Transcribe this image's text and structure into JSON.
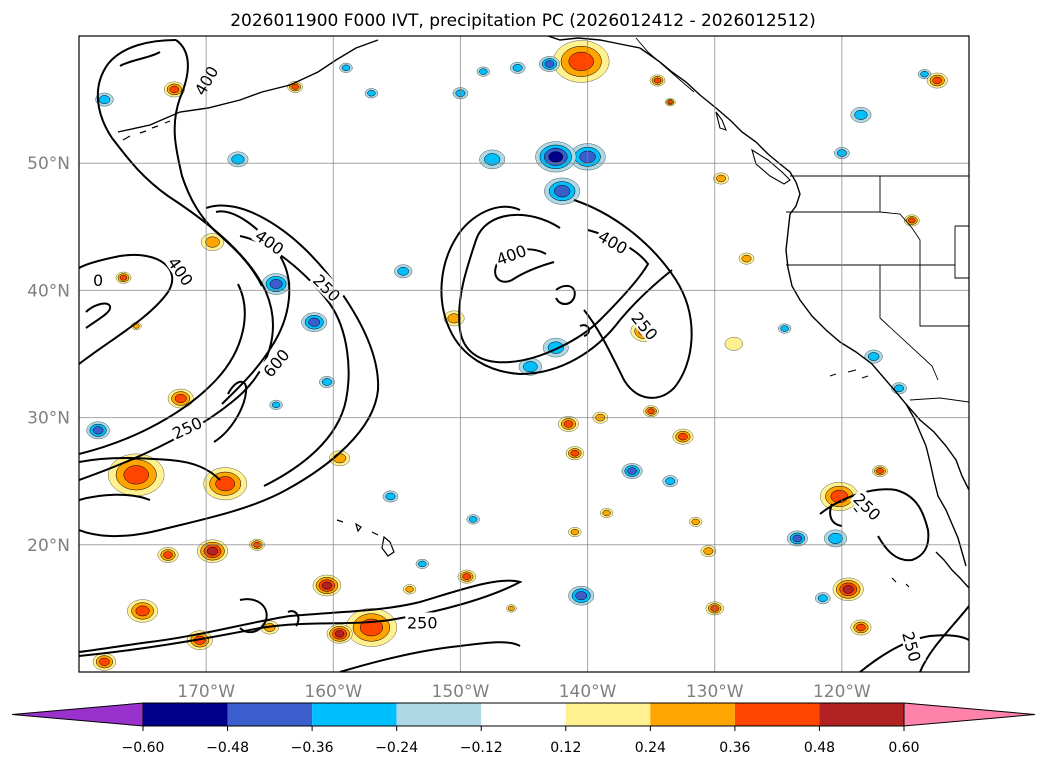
{
  "title": "2026011900 F000 IVT, precipitation PC (2026012412 - 2026012512)",
  "map": {
    "lon_range": [
      -180,
      -110
    ],
    "lat_range": [
      10,
      60
    ],
    "lon_labels": [
      {
        "value": -170,
        "text": "170°W"
      },
      {
        "value": -160,
        "text": "160°W"
      },
      {
        "value": -150,
        "text": "150°W"
      },
      {
        "value": -140,
        "text": "140°W"
      },
      {
        "value": -130,
        "text": "130°W"
      },
      {
        "value": -120,
        "text": "120°W"
      }
    ],
    "lat_labels": [
      {
        "value": 20,
        "text": "20°N"
      },
      {
        "value": 30,
        "text": "30°N"
      },
      {
        "value": 40,
        "text": "40°N"
      },
      {
        "value": 50,
        "text": "50°N"
      }
    ],
    "contour_labels": [
      {
        "lon": -172,
        "lat": 41.5,
        "text": "400",
        "rot": 55
      },
      {
        "lon": -178.5,
        "lat": 40.8,
        "text": "0",
        "rot": 0
      },
      {
        "lon": -171.5,
        "lat": 29.2,
        "text": "250",
        "rot": -25
      },
      {
        "lon": -164.5,
        "lat": 34.3,
        "text": "600",
        "rot": -50
      },
      {
        "lon": -165,
        "lat": 43.8,
        "text": "400",
        "rot": 35
      },
      {
        "lon": -160.5,
        "lat": 40.2,
        "text": "250",
        "rot": 45
      },
      {
        "lon": -153,
        "lat": 13.9,
        "text": "250",
        "rot": 0
      },
      {
        "lon": -170,
        "lat": 56.5,
        "text": "400",
        "rot": -60
      },
      {
        "lon": -146,
        "lat": 42.8,
        "text": "400",
        "rot": -20
      },
      {
        "lon": -138,
        "lat": 43.8,
        "text": "400",
        "rot": 30
      },
      {
        "lon": -135.5,
        "lat": 37.2,
        "text": "250",
        "rot": 50
      },
      {
        "lon": -118,
        "lat": 23,
        "text": "250",
        "rot": 45
      },
      {
        "lon": -114.5,
        "lat": 12,
        "text": "250",
        "rot": 75
      }
    ]
  },
  "colorbar": {
    "colors": [
      "#9932cc",
      "#00008b",
      "#3a5fcd",
      "#00bfff",
      "#add8e6",
      "#ffffff",
      "#fff090",
      "#ffa500",
      "#ff4500",
      "#b22222",
      "#ff82ab"
    ],
    "ticks": [
      {
        "value": -0.6,
        "text": "−0.60"
      },
      {
        "value": -0.48,
        "text": "−0.48"
      },
      {
        "value": -0.36,
        "text": "−0.36"
      },
      {
        "value": -0.24,
        "text": "−0.24"
      },
      {
        "value": -0.12,
        "text": "−0.12"
      },
      {
        "value": 0.12,
        "text": "0.12"
      },
      {
        "value": 0.24,
        "text": "0.24"
      },
      {
        "value": 0.36,
        "text": "0.36"
      },
      {
        "value": 0.48,
        "text": "0.48"
      },
      {
        "value": 0.6,
        "text": "0.60"
      }
    ]
  },
  "blobs": [
    {
      "lon": -140.5,
      "lat": 58,
      "r": 2.2,
      "level": 3
    },
    {
      "lon": -140,
      "lat": 50.5,
      "r": 1.4,
      "level": -3
    },
    {
      "lon": -142.5,
      "lat": 50.5,
      "r": 1.6,
      "level": -4
    },
    {
      "lon": -142,
      "lat": 47.8,
      "r": 1.4,
      "level": -3
    },
    {
      "lon": -147.5,
      "lat": 50.3,
      "r": 1.0,
      "level": -2
    },
    {
      "lon": -143,
      "lat": 57.8,
      "r": 0.8,
      "level": -3
    },
    {
      "lon": -172.5,
      "lat": 55.8,
      "r": 0.8,
      "level": 3
    },
    {
      "lon": -178,
      "lat": 55,
      "r": 0.7,
      "level": -2
    },
    {
      "lon": -167.5,
      "lat": 50.3,
      "r": 0.8,
      "level": -2
    },
    {
      "lon": -164.5,
      "lat": 40.5,
      "r": 1.1,
      "level": -3
    },
    {
      "lon": -161.5,
      "lat": 37.5,
      "r": 1.0,
      "level": -3
    },
    {
      "lon": -169.5,
      "lat": 43.8,
      "r": 0.9,
      "level": 2
    },
    {
      "lon": -154.5,
      "lat": 41.5,
      "r": 0.7,
      "level": -2
    },
    {
      "lon": -150.5,
      "lat": 37.8,
      "r": 0.8,
      "level": 2
    },
    {
      "lon": -142.5,
      "lat": 35.5,
      "r": 1.0,
      "level": -2
    },
    {
      "lon": -144.5,
      "lat": 34,
      "r": 0.9,
      "level": -2
    },
    {
      "lon": -135.5,
      "lat": 36.8,
      "r": 1.1,
      "level": 3
    },
    {
      "lon": -128.5,
      "lat": 35.8,
      "r": 0.7,
      "level": 1
    },
    {
      "lon": -112.5,
      "lat": 56.5,
      "r": 0.8,
      "level": 3
    },
    {
      "lon": -118.5,
      "lat": 53.8,
      "r": 0.8,
      "level": -2
    },
    {
      "lon": -120,
      "lat": 50.8,
      "r": 0.6,
      "level": -2
    },
    {
      "lon": -129.5,
      "lat": 48.8,
      "r": 0.6,
      "level": 2
    },
    {
      "lon": -127.5,
      "lat": 42.5,
      "r": 0.6,
      "level": 2
    },
    {
      "lon": -117.5,
      "lat": 34.8,
      "r": 0.7,
      "level": -2
    },
    {
      "lon": -178.5,
      "lat": 29,
      "r": 0.9,
      "level": -3
    },
    {
      "lon": -175.5,
      "lat": 25.5,
      "r": 2.2,
      "level": 3
    },
    {
      "lon": -168.5,
      "lat": 24.8,
      "r": 1.7,
      "level": 3
    },
    {
      "lon": -172,
      "lat": 31.5,
      "r": 1.0,
      "level": 3
    },
    {
      "lon": -159.5,
      "lat": 26.8,
      "r": 0.8,
      "level": 2
    },
    {
      "lon": -169.5,
      "lat": 19.5,
      "r": 1.2,
      "level": 4
    },
    {
      "lon": -173,
      "lat": 19.2,
      "r": 0.8,
      "level": 3
    },
    {
      "lon": -160.5,
      "lat": 16.8,
      "r": 1.1,
      "level": 4
    },
    {
      "lon": -157,
      "lat": 13.5,
      "r": 2.0,
      "level": 3
    },
    {
      "lon": -159.5,
      "lat": 13,
      "r": 1.0,
      "level": 4
    },
    {
      "lon": -175,
      "lat": 14.8,
      "r": 1.2,
      "level": 3
    },
    {
      "lon": -170.5,
      "lat": 12.5,
      "r": 1.0,
      "level": 3
    },
    {
      "lon": -165,
      "lat": 13.5,
      "r": 0.7,
      "level": 2
    },
    {
      "lon": -178,
      "lat": 10.8,
      "r": 0.9,
      "level": 3
    },
    {
      "lon": -141.5,
      "lat": 29.5,
      "r": 0.8,
      "level": 3
    },
    {
      "lon": -141,
      "lat": 27.2,
      "r": 0.7,
      "level": 3
    },
    {
      "lon": -139,
      "lat": 30,
      "r": 0.6,
      "level": 2
    },
    {
      "lon": -135,
      "lat": 30.5,
      "r": 0.6,
      "level": 3
    },
    {
      "lon": -136.5,
      "lat": 25.8,
      "r": 0.8,
      "level": -3
    },
    {
      "lon": -132.5,
      "lat": 28.5,
      "r": 0.8,
      "level": 3
    },
    {
      "lon": -133.5,
      "lat": 25,
      "r": 0.6,
      "level": -2
    },
    {
      "lon": -131.5,
      "lat": 21.8,
      "r": 0.5,
      "level": 2
    },
    {
      "lon": -140.5,
      "lat": 16,
      "r": 1.0,
      "level": -3
    },
    {
      "lon": -138.5,
      "lat": 22.5,
      "r": 0.5,
      "level": 2
    },
    {
      "lon": -149.5,
      "lat": 17.5,
      "r": 0.7,
      "level": 3
    },
    {
      "lon": -141,
      "lat": 21,
      "r": 0.5,
      "level": 2
    },
    {
      "lon": -130,
      "lat": 15,
      "r": 0.7,
      "level": 3
    },
    {
      "lon": -123.5,
      "lat": 20.5,
      "r": 0.8,
      "level": -3
    },
    {
      "lon": -120.5,
      "lat": 20.5,
      "r": 0.9,
      "level": -2
    },
    {
      "lon": -120.2,
      "lat": 23.8,
      "r": 1.5,
      "level": 3
    },
    {
      "lon": -119.5,
      "lat": 16.5,
      "r": 1.2,
      "level": 4
    },
    {
      "lon": -121.5,
      "lat": 15.8,
      "r": 0.6,
      "level": -2
    },
    {
      "lon": -118.5,
      "lat": 13.5,
      "r": 0.8,
      "level": 3
    },
    {
      "lon": -117,
      "lat": 25.8,
      "r": 0.6,
      "level": 3
    },
    {
      "lon": -155.5,
      "lat": 23.8,
      "r": 0.6,
      "level": -2
    },
    {
      "lon": -149,
      "lat": 22,
      "r": 0.5,
      "level": -2
    },
    {
      "lon": -153,
      "lat": 18.5,
      "r": 0.5,
      "level": -2
    },
    {
      "lon": -164.5,
      "lat": 31,
      "r": 0.5,
      "level": -2
    },
    {
      "lon": -160.5,
      "lat": 32.8,
      "r": 0.6,
      "level": -2
    },
    {
      "lon": -115.5,
      "lat": 32.3,
      "r": 0.6,
      "level": -2
    },
    {
      "lon": -114.5,
      "lat": 45.5,
      "r": 0.6,
      "level": 3
    },
    {
      "lon": -130.5,
      "lat": 19.5,
      "r": 0.6,
      "level": 2
    },
    {
      "lon": -154,
      "lat": 16.5,
      "r": 0.5,
      "level": 2
    },
    {
      "lon": -146,
      "lat": 15,
      "r": 0.4,
      "level": 2
    },
    {
      "lon": -166,
      "lat": 20,
      "r": 0.6,
      "level": 3
    },
    {
      "lon": -176.5,
      "lat": 41,
      "r": 0.6,
      "level": 3
    },
    {
      "lon": -175.5,
      "lat": 37.2,
      "r": 0.4,
      "level": 2
    },
    {
      "lon": -148.2,
      "lat": 57.2,
      "r": 0.5,
      "level": -2
    },
    {
      "lon": -150,
      "lat": 55.5,
      "r": 0.6,
      "level": -2
    },
    {
      "lon": -145.5,
      "lat": 57.5,
      "r": 0.6,
      "level": -2
    },
    {
      "lon": -134.5,
      "lat": 56.5,
      "r": 0.6,
      "level": 3
    },
    {
      "lon": -133.5,
      "lat": 54.8,
      "r": 0.4,
      "level": 3
    },
    {
      "lon": -159,
      "lat": 57.5,
      "r": 0.5,
      "level": -2
    },
    {
      "lon": -163,
      "lat": 56,
      "r": 0.6,
      "level": 3
    },
    {
      "lon": -157,
      "lat": 55.5,
      "r": 0.5,
      "level": -2
    },
    {
      "lon": -124.5,
      "lat": 37,
      "r": 0.5,
      "level": -2
    },
    {
      "lon": -113.5,
      "lat": 57,
      "r": 0.5,
      "level": -2
    }
  ]
}
